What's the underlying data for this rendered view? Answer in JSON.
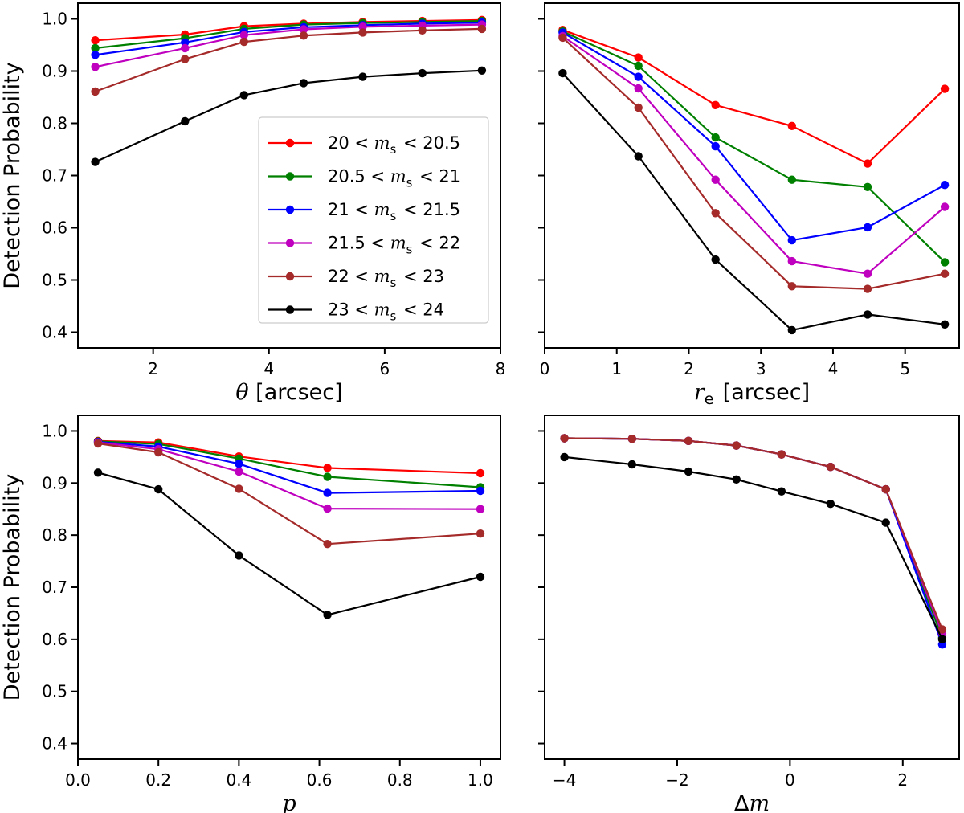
{
  "colors": {
    "red": "#ff0000",
    "green": "#008000",
    "blue": "#0000ff",
    "magenta": "#bf00bf",
    "brown": "#a52a2a",
    "black": "#000000"
  },
  "legend_labels": [
    "20 < m_s < 20.5",
    "20.5 < m_s < 21",
    "21 < m_s < 21.5",
    "21.5 < m_s < 22",
    "22 < m_s < 23",
    "23 < m_s < 24"
  ],
  "chart_data": [
    {
      "id": "theta",
      "type": "line",
      "ylabel": "Detection Probability",
      "xlabel": "θ [arcsec]",
      "xlim": [
        0.7,
        8.0
      ],
      "ylim": [
        0.37,
        1.03
      ],
      "xticks": [
        2,
        4,
        6,
        8
      ],
      "xtick_labels": [
        "2",
        "4",
        "6",
        "8"
      ],
      "yticks": [
        0.4,
        0.5,
        0.6,
        0.7,
        0.8,
        0.9,
        1.0
      ],
      "ytick_labels": [
        "0.4",
        "0.5",
        "0.6",
        "0.7",
        "0.8",
        "0.9",
        "1.0"
      ],
      "x": [
        1.0,
        2.55,
        3.57,
        4.6,
        5.62,
        6.65,
        7.68
      ],
      "series": [
        {
          "name": "20 < m_s < 20.5",
          "color": "red",
          "values": [
            0.959,
            0.97,
            0.986,
            0.991,
            0.994,
            0.996,
            0.998
          ]
        },
        {
          "name": "20.5 < m_s < 21",
          "color": "green",
          "values": [
            0.944,
            0.963,
            0.981,
            0.989,
            0.992,
            0.994,
            0.996
          ]
        },
        {
          "name": "21 < m_s < 21.5",
          "color": "blue",
          "values": [
            0.931,
            0.955,
            0.975,
            0.984,
            0.988,
            0.991,
            0.993
          ]
        },
        {
          "name": "21.5 < m_s < 22",
          "color": "magenta",
          "values": [
            0.908,
            0.944,
            0.969,
            0.98,
            0.985,
            0.987,
            0.989
          ]
        },
        {
          "name": "22 < m_s < 23",
          "color": "brown",
          "values": [
            0.861,
            0.923,
            0.956,
            0.968,
            0.974,
            0.978,
            0.981
          ]
        },
        {
          "name": "23 < m_s < 24",
          "color": "black",
          "values": [
            0.726,
            0.804,
            0.854,
            0.877,
            0.889,
            0.896,
            0.901
          ]
        }
      ]
    },
    {
      "id": "re",
      "type": "line",
      "ylabel": "",
      "xlabel": "r_e [arcsec]",
      "xlim": [
        0.0,
        5.75
      ],
      "ylim": [
        0.37,
        1.03
      ],
      "xticks": [
        0,
        1,
        2,
        3,
        4,
        5
      ],
      "xtick_labels": [
        "0",
        "1",
        "2",
        "3",
        "4",
        "5"
      ],
      "yticks": [
        0.4,
        0.5,
        0.6,
        0.7,
        0.8,
        0.9,
        1.0
      ],
      "ytick_labels": [],
      "x": [
        0.25,
        1.3,
        2.37,
        3.43,
        4.48,
        5.55
      ],
      "series": [
        {
          "name": "20 < m_s < 20.5",
          "color": "red",
          "values": [
            0.979,
            0.926,
            0.835,
            0.795,
            0.723,
            0.866
          ]
        },
        {
          "name": "20.5 < m_s < 21",
          "color": "green",
          "values": [
            0.976,
            0.91,
            0.773,
            0.692,
            0.678,
            0.534
          ]
        },
        {
          "name": "21 < m_s < 21.5",
          "color": "blue",
          "values": [
            0.974,
            0.889,
            0.756,
            0.576,
            0.601,
            0.682
          ]
        },
        {
          "name": "21.5 < m_s < 22",
          "color": "magenta",
          "values": [
            0.967,
            0.867,
            0.692,
            0.536,
            0.512,
            0.64
          ]
        },
        {
          "name": "22 < m_s < 23",
          "color": "brown",
          "values": [
            0.964,
            0.83,
            0.628,
            0.488,
            0.483,
            0.512
          ]
        },
        {
          "name": "23 < m_s < 24",
          "color": "black",
          "values": [
            0.896,
            0.737,
            0.539,
            0.404,
            0.434,
            0.415
          ]
        }
      ]
    },
    {
      "id": "p",
      "type": "line",
      "ylabel": "Detection Probability",
      "xlabel": "p",
      "xlim": [
        0.0,
        1.05
      ],
      "ylim": [
        0.37,
        1.03
      ],
      "xticks": [
        0.0,
        0.2,
        0.4,
        0.6,
        0.8,
        1.0
      ],
      "xtick_labels": [
        "0.0",
        "0.2",
        "0.4",
        "0.6",
        "0.8",
        "1.0"
      ],
      "yticks": [
        0.4,
        0.5,
        0.6,
        0.7,
        0.8,
        0.9,
        1.0
      ],
      "ytick_labels": [
        "0.4",
        "0.5",
        "0.6",
        "0.7",
        "0.8",
        "0.9",
        "1.0"
      ],
      "x": [
        0.05,
        0.2,
        0.4,
        0.62,
        1.0
      ],
      "series": [
        {
          "name": "20 < m_s < 20.5",
          "color": "red",
          "values": [
            0.981,
            0.978,
            0.951,
            0.929,
            0.919
          ]
        },
        {
          "name": "20.5 < m_s < 21",
          "color": "green",
          "values": [
            0.98,
            0.975,
            0.947,
            0.912,
            0.892
          ]
        },
        {
          "name": "21 < m_s < 21.5",
          "color": "blue",
          "values": [
            0.979,
            0.97,
            0.937,
            0.881,
            0.885
          ]
        },
        {
          "name": "21.5 < m_s < 22",
          "color": "magenta",
          "values": [
            0.978,
            0.965,
            0.922,
            0.851,
            0.85
          ]
        },
        {
          "name": "22 < m_s < 23",
          "color": "brown",
          "values": [
            0.976,
            0.959,
            0.889,
            0.783,
            0.803
          ]
        },
        {
          "name": "23 < m_s < 24",
          "color": "black",
          "values": [
            0.92,
            0.888,
            0.761,
            0.647,
            0.72
          ]
        }
      ]
    },
    {
      "id": "dm",
      "type": "line",
      "ylabel": "",
      "xlabel": "Δm",
      "xlim": [
        -4.35,
        3.0
      ],
      "ylim": [
        0.37,
        1.03
      ],
      "xticks": [
        -4,
        -2,
        0,
        2
      ],
      "xtick_labels": [
        "−4",
        "−2",
        "0",
        "2"
      ],
      "yticks": [
        0.4,
        0.5,
        0.6,
        0.7,
        0.8,
        0.9,
        1.0
      ],
      "ytick_labels": [],
      "x": [
        -4.0,
        -2.8,
        -1.8,
        -0.95,
        -0.15,
        0.72,
        1.7,
        2.7
      ],
      "series": [
        {
          "name": "20 < m_s < 20.5",
          "color": "red",
          "values": [
            0.986,
            0.985,
            0.981,
            0.972,
            0.955,
            0.931,
            0.888,
            0.607
          ]
        },
        {
          "name": "20.5 < m_s < 21",
          "color": "green",
          "values": [
            0.986,
            0.985,
            0.981,
            0.972,
            0.955,
            0.931,
            0.888,
            0.603
          ]
        },
        {
          "name": "21 < m_s < 21.5",
          "color": "blue",
          "values": [
            0.986,
            0.985,
            0.981,
            0.972,
            0.955,
            0.931,
            0.888,
            0.59
          ]
        },
        {
          "name": "21.5 < m_s < 22",
          "color": "magenta",
          "values": [
            0.986,
            0.985,
            0.981,
            0.972,
            0.955,
            0.931,
            0.888,
            0.612
          ]
        },
        {
          "name": "22 < m_s < 23",
          "color": "brown",
          "values": [
            0.986,
            0.985,
            0.981,
            0.972,
            0.955,
            0.931,
            0.888,
            0.619
          ]
        },
        {
          "name": "23 < m_s < 24",
          "color": "black",
          "values": [
            0.95,
            0.936,
            0.922,
            0.907,
            0.884,
            0.86,
            0.824,
            0.6
          ]
        }
      ]
    }
  ]
}
